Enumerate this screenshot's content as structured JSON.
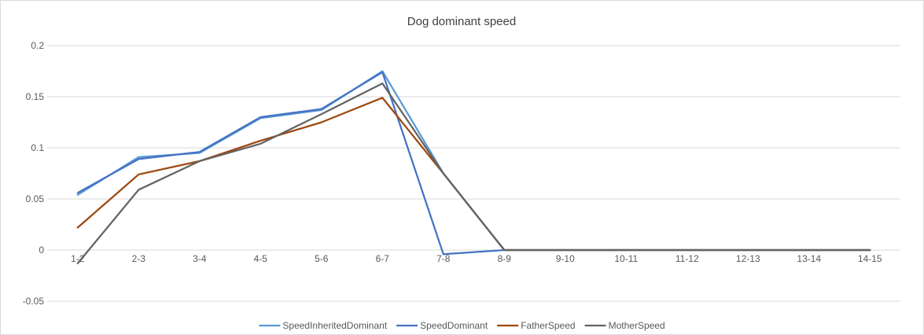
{
  "chart_data": {
    "type": "line",
    "title": "Dog dominant speed",
    "xlabel": "",
    "ylabel": "",
    "categories": [
      "1-2",
      "2-3",
      "3-4",
      "4-5",
      "5-6",
      "6-7",
      "7-8",
      "8-9",
      "9-10",
      "10-11",
      "11-12",
      "12-13",
      "13-14",
      "14-15"
    ],
    "ylim": [
      -0.05,
      0.2
    ],
    "yticks": [
      "-0.05",
      "0",
      "0.05",
      "0.1",
      "0.15",
      "0.2"
    ],
    "grid": true,
    "legend_position": "bottom",
    "series": [
      {
        "name": "SpeedInheritedDominant",
        "color": "#5b9bd5",
        "values": [
          0.054,
          0.091,
          0.095,
          0.129,
          0.137,
          0.175,
          0.075,
          0,
          0,
          0,
          0,
          0,
          0,
          0
        ]
      },
      {
        "name": "SpeedDominant",
        "color": "#4472c4",
        "values": [
          0.056,
          0.089,
          0.096,
          0.13,
          0.138,
          0.174,
          -0.004,
          0,
          0,
          0,
          0,
          0,
          0,
          0
        ]
      },
      {
        "name": "FatherSpeed",
        "color": "#9e480e",
        "values": [
          0.022,
          0.074,
          0.087,
          0.107,
          0.125,
          0.149,
          0.075,
          0,
          0,
          0,
          0,
          0,
          0,
          0
        ]
      },
      {
        "name": "MotherSpeed",
        "color": "#636363",
        "values": [
          -0.013,
          0.059,
          0.087,
          0.104,
          0.133,
          0.163,
          0.075,
          0,
          0,
          0,
          0,
          0,
          0,
          0
        ]
      }
    ]
  }
}
